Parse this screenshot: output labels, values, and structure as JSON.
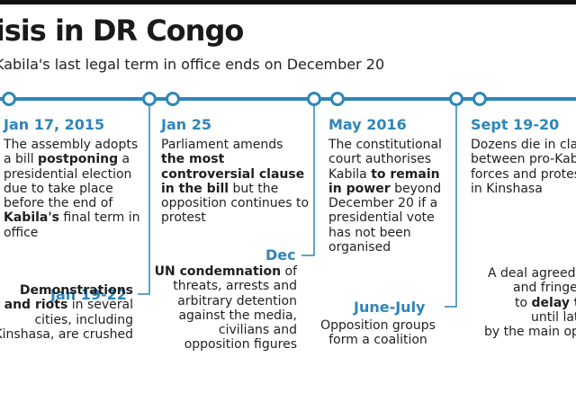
{
  "title": "risis in DR Congo",
  "subtitle": "Kabila's last legal term in office ends on December 20",
  "colors": {
    "accent": "#2e86b8",
    "text": "#1f1f1f",
    "bar": "#111111"
  },
  "events_top": [
    {
      "date": "Jan 17, 2015",
      "parts": [
        [
          "The assembly adopts a bill ",
          false
        ],
        [
          "postponing",
          true
        ],
        [
          " a presidential election due to take place before the end of ",
          false
        ],
        [
          "Kabila's",
          true
        ],
        [
          " final term in office",
          false
        ]
      ]
    },
    {
      "date": "Jan 25",
      "parts": [
        [
          "Parliament amends ",
          false
        ],
        [
          "the most controversial clause in the bill",
          true
        ],
        [
          " but the opposition continues to protest",
          false
        ]
      ]
    },
    {
      "date": "May 2016",
      "parts": [
        [
          "The constitutional court authorises Kabila ",
          false
        ],
        [
          "to remain in power",
          true
        ],
        [
          " beyond December 20 if a presidential vote has not been organised",
          false
        ]
      ]
    },
    {
      "date": "Sept 19-20",
      "parts": [
        [
          "Dozens die in cla",
          false
        ],
        [
          "between pro-Kab",
          false
        ],
        [
          "forces and protes",
          false
        ],
        [
          "in Kinshasa",
          false
        ]
      ]
    }
  ],
  "events_bottom": [
    {
      "date": "Jan 19-22",
      "parts": [
        [
          "Demonstrations and riots",
          true
        ],
        [
          " in several cities, including Kinshasa, are crushed",
          false
        ]
      ]
    },
    {
      "date": "Dec",
      "parts": [
        [
          "UN condemnation",
          true
        ],
        [
          " of threats, arrests and arbitrary detention against the media, civilians and opposition figures",
          false
        ]
      ]
    },
    {
      "date": "June-July",
      "parts": [
        [
          "Opposition groups form a coalition",
          false
        ]
      ]
    }
  ],
  "partial_right": {
    "lines": [
      [
        "A deal agreed",
        false
      ],
      [
        "and fringe",
        false
      ],
      [
        "to ",
        false
      ],
      [
        "delay the",
        true
      ],
      [
        "until lat",
        false
      ],
      [
        "by the main op",
        false
      ]
    ]
  }
}
